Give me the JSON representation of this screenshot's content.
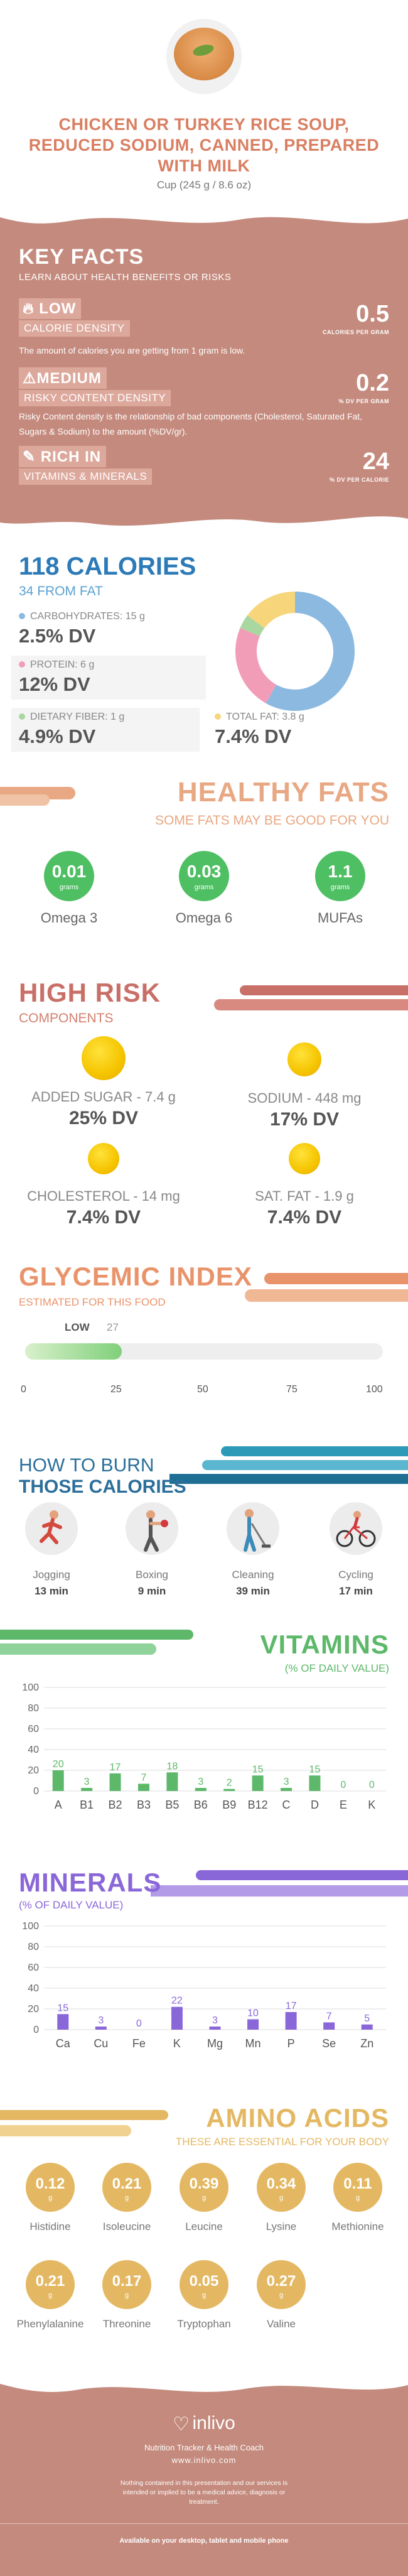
{
  "header": {
    "title": "CHICKEN OR TURKEY RICE SOUP, REDUCED SODIUM, CANNED, PREPARED WITH MILK",
    "serving": "Cup (245 g / 8.6 oz)"
  },
  "key_facts": {
    "title": "KEY FACTS",
    "subtitle": "LEARN ABOUT HEALTH BENEFITS OR RISKS",
    "items": [
      {
        "level": "LOW",
        "name": "CALORIE DENSITY",
        "desc": "The amount of calories you are getting from 1 gram is low.",
        "value": "0.5",
        "unit": "CALORIES PER GRAM",
        "icon": "flame-icon"
      },
      {
        "level": "MEDIUM",
        "name": "RISKY CONTENT DENSITY",
        "desc": "Risky Content density is the relationship of bad components (Cholesterol, Saturated Fat, Sugars & Sodium) to the amount (%DV/gr).",
        "value": "0.2",
        "unit": "% DV PER GRAM",
        "icon": "warning-icon"
      },
      {
        "level": "RICH  IN",
        "name": "VITAMINS & MINERALS",
        "desc": "",
        "value": "24",
        "unit": "% DV PER CALORIE",
        "icon": "leaf-icon"
      }
    ]
  },
  "calories": {
    "title": "118 CALORIES",
    "subtitle": "34 FROM FAT",
    "nutrients": [
      {
        "label": "CARBOHYDRATES: 15 g",
        "dv": "2.5% DV",
        "color": "#8bb9e0"
      },
      {
        "label": "PROTEIN: 6 g",
        "dv": "12% DV",
        "color": "#f29db8"
      },
      {
        "label": "DIETARY FIBER: 1 g",
        "dv": "4.9% DV",
        "color": "#a9d7a0"
      },
      {
        "label": "TOTAL FAT: 3.8 g",
        "dv": "7.4% DV",
        "color": "#f7d57a"
      }
    ],
    "donut": [
      {
        "name": "carbohydrates",
        "value": 15,
        "color": "#8bb9e0"
      },
      {
        "name": "protein",
        "value": 6,
        "color": "#f29db8"
      },
      {
        "name": "dietary fiber",
        "value": 1,
        "color": "#a9d7a0"
      },
      {
        "name": "total fat",
        "value": 3.8,
        "color": "#f7d57a"
      }
    ]
  },
  "healthy_fats": {
    "title": "HEALTHY FATS",
    "subtitle": "SOME FATS MAY BE GOOD FOR YOU",
    "items": [
      {
        "value": "0.01",
        "unit": "grams",
        "name": "Omega 3"
      },
      {
        "value": "0.03",
        "unit": "grams",
        "name": "Omega 6"
      },
      {
        "value": "1.1",
        "unit": "grams",
        "name": "MUFAs"
      }
    ]
  },
  "high_risk": {
    "title": "HIGH RISK",
    "subtitle": "COMPONENTS",
    "items": [
      {
        "label": "ADDED SUGAR - 7.4 g",
        "dv": "25% DV"
      },
      {
        "label": "SODIUM - 448 mg",
        "dv": "17% DV"
      },
      {
        "label": "CHOLESTEROL - 14 mg",
        "dv": "7.4% DV"
      },
      {
        "label": "SAT. FAT - 1.9 g",
        "dv": "7.4% DV"
      }
    ]
  },
  "glycemic": {
    "title": "GLYCEMIC INDEX",
    "subtitle": "ESTIMATED FOR THIS FOOD",
    "level": "LOW",
    "value": 27,
    "value_text": "27",
    "ticks": [
      "0",
      "25",
      "50",
      "75",
      "100"
    ]
  },
  "burn": {
    "title_top": "HOW TO BURN",
    "title_bottom": "THOSE CALORIES",
    "activities": [
      {
        "name": "Jogging",
        "time": "13 min",
        "icon": "jogging-icon"
      },
      {
        "name": "Boxing",
        "time": "9 min",
        "icon": "boxing-icon"
      },
      {
        "name": "Cleaning",
        "time": "39 min",
        "icon": "cleaning-icon"
      },
      {
        "name": "Cycling",
        "time": "17 min",
        "icon": "cycling-icon"
      }
    ]
  },
  "vitamins": {
    "title": "VITAMINS",
    "subtitle": "(% OF DAILY VALUE)",
    "color": "#5db86a"
  },
  "minerals": {
    "title": "MINERALS",
    "subtitle": "(% OF DAILY VALUE)",
    "color": "#8a67d8"
  },
  "chart_data": [
    {
      "type": "bar",
      "title": "VITAMINS",
      "subtitle": "(% OF DAILY VALUE)",
      "categories": [
        "A",
        "B1",
        "B2",
        "B3",
        "B5",
        "B6",
        "B9",
        "B12",
        "C",
        "D",
        "E",
        "K"
      ],
      "values": [
        20,
        3,
        17,
        7,
        18,
        3,
        2,
        15,
        3,
        15,
        0,
        0
      ],
      "labels": [
        "20",
        "3",
        "17",
        "7",
        "18",
        "3",
        "2",
        "15",
        "3",
        "15",
        "0",
        "0"
      ],
      "yticks": [
        "0",
        "20",
        "40",
        "60",
        "80",
        "100"
      ],
      "ylim": [
        0,
        100
      ],
      "grid": true
    },
    {
      "type": "bar",
      "title": "MINERALS",
      "subtitle": "(% OF DAILY VALUE)",
      "categories": [
        "Ca",
        "Cu",
        "Fe",
        "K",
        "Mg",
        "Mn",
        "P",
        "Se",
        "Zn"
      ],
      "values": [
        15,
        3,
        0,
        22,
        3,
        10,
        17,
        7,
        5
      ],
      "labels": [
        "15",
        "3",
        "0",
        "22",
        "3",
        "10",
        "17",
        "7",
        "5"
      ],
      "yticks": [
        "0",
        "20",
        "40",
        "60",
        "80",
        "100"
      ],
      "ylim": [
        0,
        100
      ],
      "grid": true
    }
  ],
  "amino": {
    "title": "AMINO ACIDS",
    "subtitle": "THESE ARE ESSENTIAL FOR YOUR BODY",
    "items": [
      {
        "value": "0.12",
        "unit": "g",
        "name": "Histidine"
      },
      {
        "value": "0.21",
        "unit": "g",
        "name": "Isoleucine"
      },
      {
        "value": "0.39",
        "unit": "g",
        "name": "Leucine"
      },
      {
        "value": "0.34",
        "unit": "g",
        "name": "Lysine"
      },
      {
        "value": "0.11",
        "unit": "g",
        "name": "Methionine"
      },
      {
        "value": "0.21",
        "unit": "g",
        "name": "Phenylalanine"
      },
      {
        "value": "0.17",
        "unit": "g",
        "name": "Threonine"
      },
      {
        "value": "0.05",
        "unit": "g",
        "name": "Tryptophan"
      },
      {
        "value": "0.27",
        "unit": "g",
        "name": "Valine"
      }
    ]
  },
  "footer": {
    "brand": "inlivo",
    "tagline": "Nutrition Tracker & Health Coach",
    "url": "www.inlivo.com",
    "disclaimer": "Nothing contained in this presentation and our services is intended or implied to be a medical advice, diagnosis or treatment.",
    "available": "Available on your desktop, tablet and mobile phone"
  }
}
